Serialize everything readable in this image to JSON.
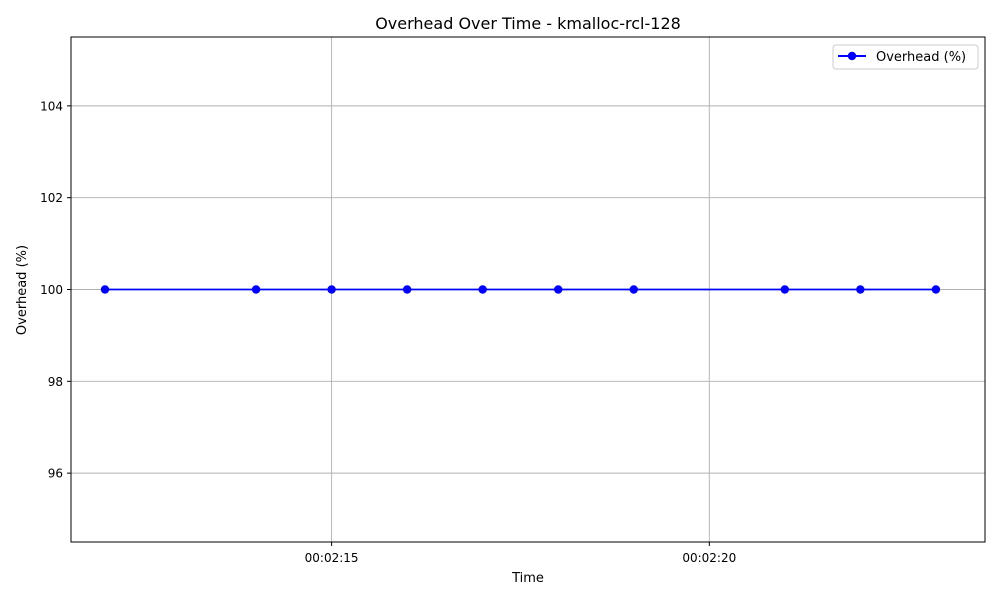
{
  "chart_data": {
    "type": "line",
    "title": "Overhead Over Time - kmalloc-rcl-128",
    "xlabel": "Time",
    "ylabel": "Overhead (%)",
    "x_tick_labels": [
      "00:02:15",
      "00:02:20"
    ],
    "x_tick_values": [
      "00:02:15",
      "00:02:20"
    ],
    "y_ticks": [
      96,
      98,
      100,
      102,
      104
    ],
    "xlim": [
      "00:02:11.55",
      "00:02:23.65"
    ],
    "ylim": [
      94.5,
      105.5
    ],
    "grid": true,
    "legend_position": "top-right",
    "series": [
      {
        "name": "Overhead (%)",
        "color": "#0000ff",
        "marker": "circle",
        "x": [
          "00:02:12",
          "00:02:14",
          "00:02:15",
          "00:02:16",
          "00:02:17",
          "00:02:18",
          "00:02:19",
          "00:02:21",
          "00:02:22",
          "00:02:23"
        ],
        "y": [
          100,
          100,
          100,
          100,
          100,
          100,
          100,
          100,
          100,
          100
        ]
      }
    ]
  }
}
